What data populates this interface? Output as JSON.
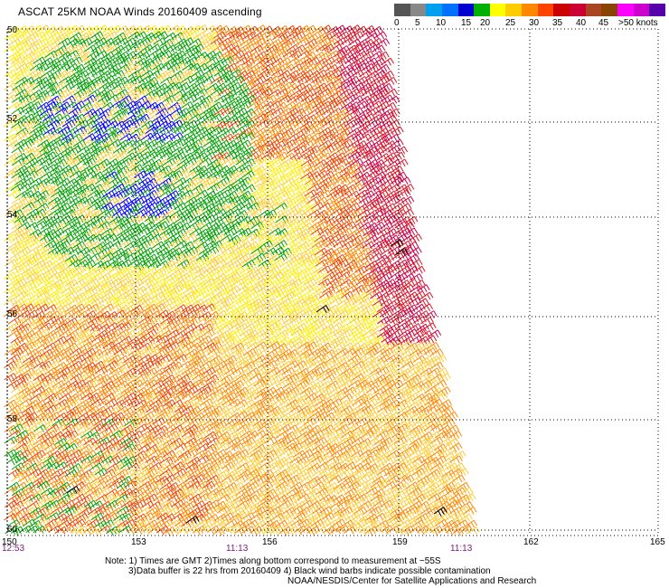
{
  "title": "ASCAT 25KM NOAA Winds 20160409 ascending",
  "legend": {
    "labels": [
      "0",
      "5",
      "10",
      "15",
      "20",
      "25",
      "30",
      "35",
      "40",
      "45",
      ">50 knots"
    ],
    "colors": [
      "#555555",
      "#888888",
      "#00a0f0",
      "#0070ff",
      "#0000d0",
      "#00b000",
      "#ffff00",
      "#ffcc00",
      "#ff8800",
      "#ff4400",
      "#cc0000",
      "#cc0033",
      "#aa4422",
      "#884400",
      "#ff00ff",
      "#cc00cc",
      "#5500aa"
    ]
  },
  "axes": {
    "lat_labels": [
      "50",
      "52",
      "54",
      "56",
      "58",
      "60"
    ],
    "lon_labels": [
      "150",
      "153",
      "156",
      "159",
      "162",
      "165"
    ]
  },
  "times": {
    "left": "12:53",
    "middle": "11:13",
    "right": "11:13"
  },
  "notes": [
    "Note: 1) Times are GMT 2)Times along bottom correspond to measurement at ~55S",
    "3)Data buffer is 22 hrs from 20160409 4) Black wind barbs indicate possible contamination",
    "NOAA/NESDIS/Center for Satellite Applications and Research"
  ],
  "barb_colors": {
    "blue": "#0000ff",
    "green": "#00a000",
    "yellow": "#ffee00",
    "light_orange": "#ffcc33",
    "orange": "#ff8800",
    "red_orange": "#ee4400",
    "red": "#dd1122",
    "crimson": "#cc0044",
    "black": "#000000"
  }
}
